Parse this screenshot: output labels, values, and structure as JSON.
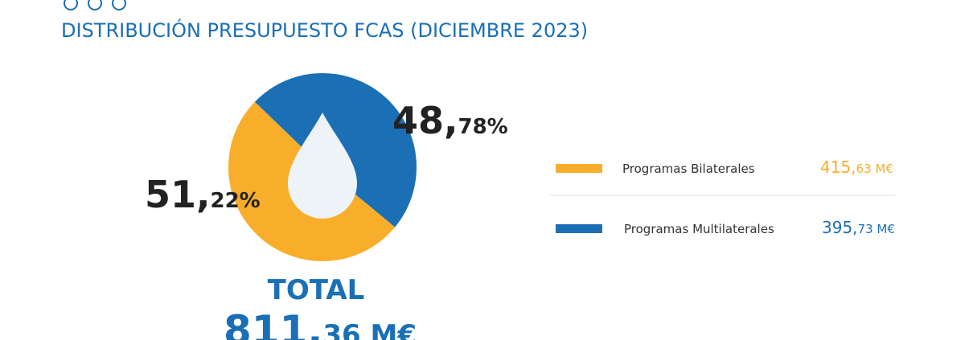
{
  "chart_data": {
    "type": "pie",
    "title": "DISTRIBUCIÓN PRESUPUESTO FCAS (DICIEMBRE 2023)",
    "categories": [
      "Programas Bilaterales",
      "Programas Multilaterales"
    ],
    "values": [
      51.22,
      48.78
    ],
    "value_labels": [
      "51,22%",
      "48,78%"
    ],
    "colors": [
      "#f9ae2b",
      "#1b6fb5"
    ],
    "amount_labels": [
      "415,63 M€",
      "395,73 M€"
    ],
    "total_label": "TOTAL",
    "total": "811,36 M€"
  }
}
